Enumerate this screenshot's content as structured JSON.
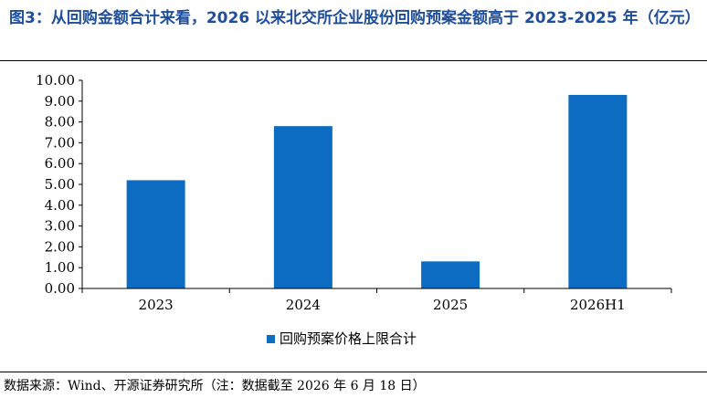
{
  "title": "图3：从回购金额合计来看，2026 以来北交所企业股份回购预案金额高于 2023-2025 年（亿元）",
  "source": "数据来源：Wind、开源证券研究所（注：数据截至 2026 年 6 月 18 日）",
  "colors": {
    "bar": "#0b6cc1",
    "axis": "#000000"
  },
  "chart_data": {
    "type": "bar",
    "categories": [
      "2023",
      "2024",
      "2025",
      "2026H1"
    ],
    "series": [
      {
        "name": "回购预案价格上限合计",
        "values": [
          5.2,
          7.8,
          1.3,
          9.3
        ]
      }
    ],
    "ylim": [
      0,
      10
    ],
    "yticks": [
      "0.00",
      "1.00",
      "2.00",
      "3.00",
      "4.00",
      "5.00",
      "6.00",
      "7.00",
      "8.00",
      "9.00",
      "10.00"
    ],
    "xlabel": "",
    "ylabel": "",
    "grid": false,
    "legend": "bottom"
  }
}
